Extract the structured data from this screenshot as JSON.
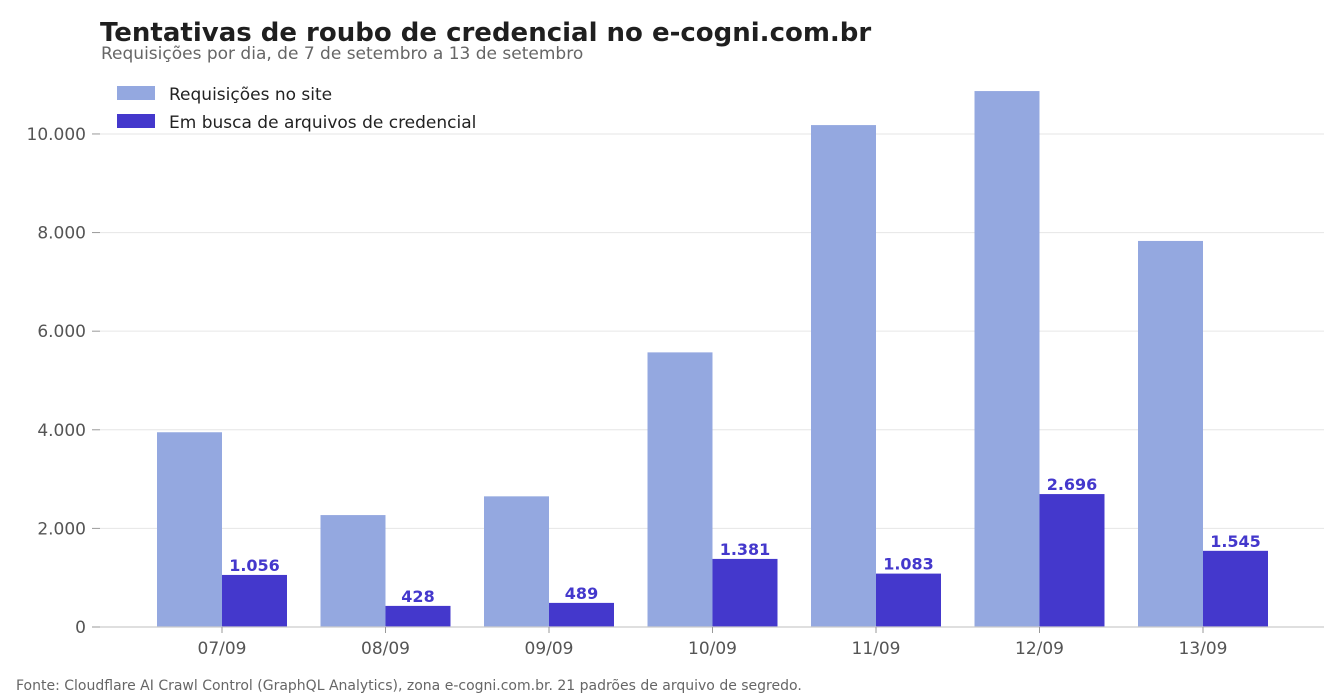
{
  "chart_data": {
    "type": "bar",
    "title": "Tentativas de roubo de credencial no e-cogni.com.br",
    "subtitle": "Requisições por dia, de 7 de setembro a 13 de setembro",
    "categories": [
      "07/09",
      "08/09",
      "09/09",
      "10/09",
      "11/09",
      "12/09",
      "13/09"
    ],
    "series": [
      {
        "name": "Requisições no site",
        "color": "#94a8e0",
        "values": [
          3950,
          2270,
          2650,
          5570,
          10180,
          10870,
          7830
        ]
      },
      {
        "name": "Em busca de arquivos de credencial",
        "color": "#4438cc",
        "values": [
          1056,
          428,
          489,
          1381,
          1083,
          2696,
          1545
        ],
        "data_labels": [
          "1.056",
          "428",
          "489",
          "1.381",
          "1.083",
          "2.696",
          "1.545"
        ]
      }
    ],
    "ylim": [
      0,
      11500
    ],
    "yticks": [
      0,
      2000,
      4000,
      6000,
      8000,
      10000
    ],
    "ytick_labels": [
      "0",
      "2.000",
      "4.000",
      "6.000",
      "8.000",
      "10.000"
    ],
    "grid": true,
    "legend_position": "top-left",
    "xlabel": "",
    "ylabel": "",
    "source": "Fonte: Cloudflare AI Crawl Control (GraphQL Analytics), zona e-cogni.com.br. 21 padrões de arquivo de segredo."
  }
}
